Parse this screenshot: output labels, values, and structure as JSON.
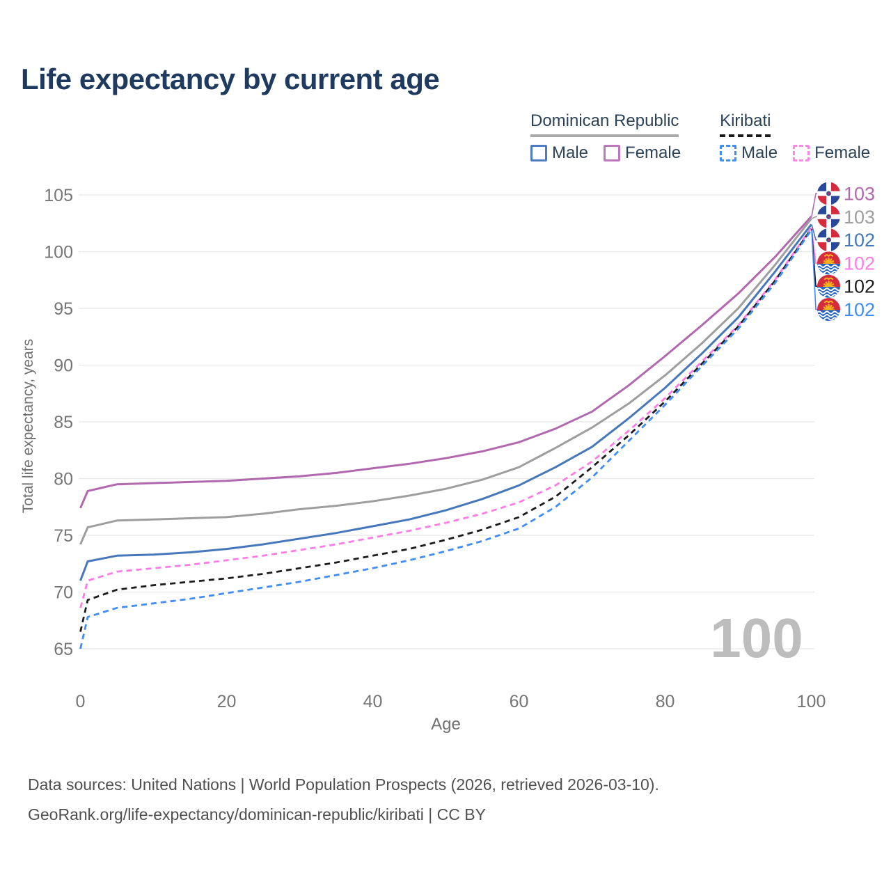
{
  "header": {
    "title": "Life expectancy by current age"
  },
  "legend": {
    "groups": [
      {
        "country": "Dominican Republic",
        "line_style": "solid",
        "underline_color": "#a8a8a8",
        "items": [
          {
            "label": "Male",
            "color": "#4f7cc0",
            "dashed": false
          },
          {
            "label": "Female",
            "color": "#bd77bc",
            "dashed": false
          }
        ]
      },
      {
        "country": "Kiribati",
        "line_style": "dashed",
        "underline_color": "#1a1a1a",
        "items": [
          {
            "label": "Male",
            "color": "#3f8efa",
            "dashed": true
          },
          {
            "label": "Female",
            "color": "#ff85e8",
            "dashed": true
          }
        ]
      }
    ]
  },
  "chart_data": {
    "type": "line",
    "title": "Life expectancy by current age",
    "xlabel": "Age",
    "ylabel": "Total life expectancy, years",
    "xlim": [
      0,
      100
    ],
    "ylim": [
      65,
      105
    ],
    "xticks": [
      0,
      20,
      40,
      60,
      80,
      100
    ],
    "yticks": [
      65,
      70,
      75,
      80,
      85,
      90,
      95,
      100,
      105
    ],
    "grid": "horizontal",
    "legend_position": "top-right",
    "watermark": "100",
    "x": [
      0,
      1,
      5,
      10,
      15,
      20,
      25,
      30,
      35,
      40,
      45,
      50,
      55,
      60,
      65,
      70,
      75,
      80,
      85,
      90,
      95,
      100
    ],
    "series": [
      {
        "name": "Dominican Republic Female",
        "country": "Dominican Republic",
        "sex": "Female",
        "color": "#b168ae",
        "dashed": false,
        "flag": "do",
        "end_label": "103",
        "values": [
          77.4,
          78.9,
          79.5,
          79.6,
          79.7,
          79.8,
          80.0,
          80.2,
          80.5,
          80.9,
          81.3,
          81.8,
          82.4,
          83.2,
          84.4,
          85.9,
          88.2,
          90.8,
          93.5,
          96.3,
          99.5,
          103.1
        ]
      },
      {
        "name": "Dominican Republic Total",
        "country": "Dominican Republic",
        "sex": "Both",
        "color": "#9e9e9e",
        "dashed": false,
        "flag": "do",
        "end_label": "103",
        "values": [
          74.2,
          75.7,
          76.3,
          76.4,
          76.5,
          76.6,
          76.9,
          77.3,
          77.6,
          78.0,
          78.5,
          79.1,
          79.9,
          81.0,
          82.7,
          84.5,
          86.6,
          89.1,
          91.9,
          95.0,
          98.8,
          102.9
        ]
      },
      {
        "name": "Dominican Republic Male",
        "country": "Dominican Republic",
        "sex": "Male",
        "color": "#4677bb",
        "dashed": false,
        "flag": "do",
        "end_label": "102",
        "values": [
          71.0,
          72.7,
          73.2,
          73.3,
          73.5,
          73.8,
          74.2,
          74.7,
          75.2,
          75.8,
          76.4,
          77.2,
          78.2,
          79.4,
          81.0,
          82.8,
          85.3,
          88.0,
          91.0,
          94.2,
          98.2,
          102.4
        ]
      },
      {
        "name": "Kiribati Female",
        "country": "Kiribati",
        "sex": "Female",
        "color": "#ff7ce7",
        "dashed": true,
        "flag": "ki",
        "end_label": "102",
        "values": [
          68.6,
          71.0,
          71.8,
          72.1,
          72.4,
          72.8,
          73.2,
          73.7,
          74.2,
          74.8,
          75.4,
          76.1,
          76.9,
          77.9,
          79.4,
          81.5,
          84.2,
          87.1,
          90.3,
          93.5,
          97.5,
          102.1
        ]
      },
      {
        "name": "Kiribati Total",
        "country": "Kiribati",
        "sex": "Both",
        "color": "#1c1c1c",
        "dashed": true,
        "flag": "ki",
        "end_label": "102",
        "values": [
          66.5,
          69.3,
          70.2,
          70.6,
          70.9,
          71.2,
          71.6,
          72.1,
          72.6,
          73.2,
          73.8,
          74.6,
          75.5,
          76.6,
          78.4,
          81.0,
          83.8,
          86.8,
          90.1,
          93.4,
          97.4,
          102.0
        ]
      },
      {
        "name": "Kiribati Male",
        "country": "Kiribati",
        "sex": "Male",
        "color": "#3f8df6",
        "dashed": true,
        "flag": "ki",
        "end_label": "102",
        "values": [
          65.0,
          67.8,
          68.6,
          69.0,
          69.4,
          69.9,
          70.4,
          70.9,
          71.5,
          72.1,
          72.8,
          73.6,
          74.5,
          75.6,
          77.5,
          80.1,
          83.3,
          86.5,
          89.9,
          93.2,
          97.2,
          101.9
        ]
      }
    ],
    "flag_colors": {
      "do_blue": "#2a4899",
      "do_red": "#d52b3c",
      "do_white": "#ffffff",
      "ki_red": "#d52b3c",
      "ki_blue": "#2062c8",
      "ki_gold": "#f5b31b",
      "ki_white": "#ffffff"
    },
    "style": {
      "grid_color": "#e8e8e8",
      "tick_color": "#757575",
      "axis_label_color": "#6f6f6f",
      "watermark_color": "#bdbdbd"
    }
  },
  "footer": {
    "line1": "Data sources: United Nations | World Population Prospects (2026, retrieved 2026-03-10).",
    "line2": "GeoRank.org/life-expectancy/dominican-republic/kiribati | CC BY"
  }
}
